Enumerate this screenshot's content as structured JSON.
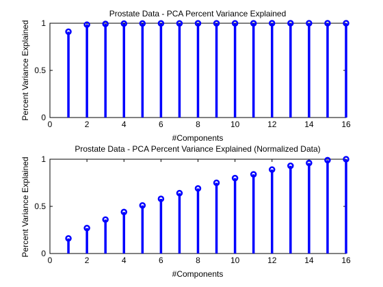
{
  "chart_data": [
    {
      "type": "stem",
      "title": "Prostate Data - PCA Percent Variance Explained",
      "xlabel": "#Components",
      "ylabel": "Percent Variance Explained",
      "xlim": [
        0,
        16
      ],
      "ylim": [
        0,
        1
      ],
      "xticks": [
        0,
        2,
        4,
        6,
        8,
        10,
        12,
        14,
        16
      ],
      "yticks": [
        0,
        0.5,
        1
      ],
      "xtick_labels": [
        "0",
        "2",
        "4",
        "6",
        "8",
        "10",
        "12",
        "14",
        "16"
      ],
      "ytick_labels": [
        "0",
        "0.5",
        "1"
      ],
      "grid": false,
      "color": "#0000ff",
      "series": [
        {
          "x": [
            1,
            2,
            3,
            4,
            5,
            6,
            7,
            8,
            9,
            10,
            11,
            12,
            13,
            14,
            15,
            16
          ],
          "values": [
            0.91,
            0.985,
            0.993,
            0.996,
            0.997,
            0.998,
            0.998,
            0.999,
            0.999,
            0.999,
            0.999,
            1.0,
            1.0,
            1.0,
            1.0,
            1.0
          ]
        }
      ]
    },
    {
      "type": "stem",
      "title": "Prostate Data - PCA Percent Variance Explained (Normalized Data)",
      "xlabel": "#Components",
      "ylabel": "Percent Variance Explained",
      "xlim": [
        0,
        16
      ],
      "ylim": [
        0,
        1
      ],
      "xticks": [
        0,
        2,
        4,
        6,
        8,
        10,
        12,
        14,
        16
      ],
      "yticks": [
        0,
        0.5,
        1
      ],
      "xtick_labels": [
        "0",
        "2",
        "4",
        "6",
        "8",
        "10",
        "12",
        "14",
        "16"
      ],
      "ytick_labels": [
        "0",
        "0.5",
        "1"
      ],
      "grid": false,
      "color": "#0000ff",
      "series": [
        {
          "x": [
            1,
            2,
            3,
            4,
            5,
            6,
            7,
            8,
            9,
            10,
            11,
            12,
            13,
            14,
            15,
            16
          ],
          "values": [
            0.16,
            0.27,
            0.36,
            0.44,
            0.51,
            0.58,
            0.64,
            0.69,
            0.75,
            0.8,
            0.84,
            0.89,
            0.93,
            0.96,
            0.99,
            1.0
          ]
        }
      ]
    }
  ]
}
